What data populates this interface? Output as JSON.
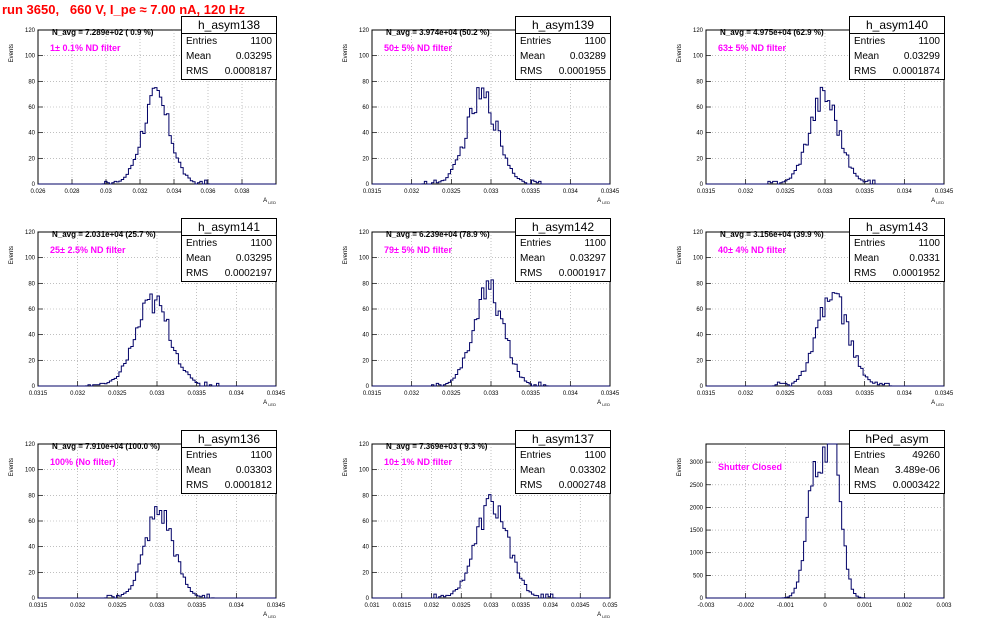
{
  "title": "run 3650,   660 V, I_pe ≈ 7.00 nA, 120 Hz",
  "chart_data": [
    {
      "type": "histogram",
      "name": "h_asym138",
      "ylabel": "Events",
      "xlabel": "A_{LED}",
      "ylim": [
        0,
        120
      ],
      "yticks": [
        0,
        20,
        40,
        60,
        80,
        100,
        120
      ],
      "xlim": [
        0.026,
        0.04
      ],
      "xticks": [
        0.026,
        0.028,
        0.03,
        0.032,
        0.034,
        0.036,
        0.038,
        0.04
      ],
      "xticklabels": [
        "0.026",
        "0.028",
        "0.03",
        "0.032",
        "0.034",
        "0.036",
        "0.038",
        ""
      ],
      "stats": {
        "entries": "1100",
        "mean": "0.03295",
        "rms": "0.0008187"
      },
      "n_avg": "N_avg = 7.289e+02 ( 0.9 %)",
      "filter": "1± 0.1% ND filter",
      "mean": 0.03295,
      "sigma": 0.00082,
      "peak": 72
    },
    {
      "type": "histogram",
      "name": "h_asym139",
      "ylabel": "Events",
      "xlabel": "A_{LED}",
      "ylim": [
        0,
        120
      ],
      "yticks": [
        0,
        20,
        40,
        60,
        80,
        100,
        120
      ],
      "xlim": [
        0.0315,
        0.0345
      ],
      "xticks": [
        0.0315,
        0.032,
        0.0325,
        0.033,
        0.0335,
        0.034,
        0.0345
      ],
      "xticklabels": [
        "0.0315",
        "0.032",
        "0.0325",
        "0.033",
        "0.0335",
        "0.034",
        "0.0345"
      ],
      "stats": {
        "entries": "1100",
        "mean": "0.03289",
        "rms": "0.0001955"
      },
      "n_avg": "N_avg = 3.974e+04 (50.2 %)",
      "filter": "50± 5% ND filter",
      "mean": 0.03289,
      "sigma": 0.000196,
      "peak": 73
    },
    {
      "type": "histogram",
      "name": "h_asym140",
      "ylabel": "Events",
      "xlabel": "A_{LED}",
      "ylim": [
        0,
        120
      ],
      "yticks": [
        0,
        20,
        40,
        60,
        80,
        100,
        120
      ],
      "xlim": [
        0.0315,
        0.0345
      ],
      "xticks": [
        0.0315,
        0.032,
        0.0325,
        0.033,
        0.0335,
        0.034,
        0.0345
      ],
      "xticklabels": [
        "0.0315",
        "0.032",
        "0.0325",
        "0.033",
        "0.0335",
        "0.034",
        "0.0345"
      ],
      "stats": {
        "entries": "1100",
        "mean": "0.03299",
        "rms": "0.0001874"
      },
      "n_avg": "N_avg = 4.975e+04 (62.9 %)",
      "filter": "63± 5% ND filter",
      "mean": 0.03299,
      "sigma": 0.000187,
      "peak": 74
    },
    {
      "type": "histogram",
      "name": "h_asym141",
      "ylabel": "Events",
      "xlabel": "A_{LED}",
      "ylim": [
        0,
        120
      ],
      "yticks": [
        0,
        20,
        40,
        60,
        80,
        100,
        120
      ],
      "xlim": [
        0.0315,
        0.0345
      ],
      "xticks": [
        0.0315,
        0.032,
        0.0325,
        0.033,
        0.0335,
        0.034,
        0.0345
      ],
      "xticklabels": [
        "0.0315",
        "0.032",
        "0.0325",
        "0.033",
        "0.0335",
        "0.034",
        "0.0345"
      ],
      "stats": {
        "entries": "1100",
        "mean": "0.03295",
        "rms": "0.0002197"
      },
      "n_avg": "N_avg = 2.031e+04 (25.7 %)",
      "filter": "25± 2.5% ND filter",
      "mean": 0.03295,
      "sigma": 0.00022,
      "peak": 70
    },
    {
      "type": "histogram",
      "name": "h_asym142",
      "ylabel": "Events",
      "xlabel": "A_{LED}",
      "ylim": [
        0,
        120
      ],
      "yticks": [
        0,
        20,
        40,
        60,
        80,
        100,
        120
      ],
      "xlim": [
        0.0315,
        0.0345
      ],
      "xticks": [
        0.0315,
        0.032,
        0.0325,
        0.033,
        0.0335,
        0.034,
        0.0345
      ],
      "xticklabels": [
        "0.0315",
        "0.032",
        "0.0325",
        "0.033",
        "0.0335",
        "0.034",
        "0.0345"
      ],
      "stats": {
        "entries": "1100",
        "mean": "0.03297",
        "rms": "0.0001917"
      },
      "n_avg": "N_avg = 6.239e+04 (78.9 %)",
      "filter": "79± 5% ND filter",
      "mean": 0.03297,
      "sigma": 0.000192,
      "peak": 80
    },
    {
      "type": "histogram",
      "name": "h_asym143",
      "ylabel": "Events",
      "xlabel": "A_{LED}",
      "ylim": [
        0,
        120
      ],
      "yticks": [
        0,
        20,
        40,
        60,
        80,
        100,
        120
      ],
      "xlim": [
        0.0315,
        0.0345
      ],
      "xticks": [
        0.0315,
        0.032,
        0.0325,
        0.033,
        0.0335,
        0.034,
        0.0345
      ],
      "xticklabels": [
        "0.0315",
        "0.032",
        "0.0325",
        "0.033",
        "0.0335",
        "0.034",
        "0.0345"
      ],
      "stats": {
        "entries": "1100",
        "mean": "0.0331",
        "rms": "0.0001952"
      },
      "n_avg": "N_avg = 3.156e+04 (39.9 %)",
      "filter": "40± 4% ND filter",
      "mean": 0.0331,
      "sigma": 0.000195,
      "peak": 75
    },
    {
      "type": "histogram",
      "name": "h_asym136",
      "ylabel": "Events",
      "xlabel": "A_{LED}",
      "ylim": [
        0,
        120
      ],
      "yticks": [
        0,
        20,
        40,
        60,
        80,
        100,
        120
      ],
      "xlim": [
        0.0315,
        0.0345
      ],
      "xticks": [
        0.0315,
        0.032,
        0.0325,
        0.033,
        0.0335,
        0.034,
        0.0345
      ],
      "xticklabels": [
        "0.0315",
        "0.032",
        "0.0325",
        "0.033",
        "0.0335",
        "0.034",
        "0.0345"
      ],
      "stats": {
        "entries": "1100",
        "mean": "0.03303",
        "rms": "0.0001812"
      },
      "n_avg": "N_avg = 7.910e+04 (100.0 %)",
      "filter": "100% (No filter)",
      "mean": 0.03303,
      "sigma": 0.000181,
      "peak": 72
    },
    {
      "type": "histogram",
      "name": "h_asym137",
      "ylabel": "Events",
      "xlabel": "A_{LED}",
      "ylim": [
        0,
        120
      ],
      "yticks": [
        0,
        20,
        40,
        60,
        80,
        100,
        120
      ],
      "xlim": [
        0.031,
        0.035
      ],
      "xticks": [
        0.031,
        0.0315,
        0.032,
        0.0325,
        0.033,
        0.0335,
        0.034,
        0.0345,
        0.035
      ],
      "xticklabels": [
        "0.031",
        "0.0315",
        "0.032",
        "0.0325",
        "0.033",
        "0.0335",
        "0.034",
        "0.0345",
        "0.035"
      ],
      "stats": {
        "entries": "1100",
        "mean": "0.03302",
        "rms": "0.0002748"
      },
      "n_avg": "N_avg = 7.369e+03 ( 9.3 %)",
      "filter": "10± 1% ND filter",
      "mean": 0.03302,
      "sigma": 0.000275,
      "peak": 78
    },
    {
      "type": "histogram",
      "name": "hPed_asym",
      "ylabel": "Events",
      "xlabel": "",
      "ylim": [
        0,
        3400
      ],
      "yticks": [
        0,
        500,
        1000,
        1500,
        2000,
        2500,
        3000
      ],
      "xlim": [
        -0.003,
        0.003
      ],
      "xticks": [
        -0.003,
        -0.002,
        -0.001,
        0,
        0.001,
        0.002,
        0.003
      ],
      "xticklabels": [
        "-0.003",
        "-0.002",
        "-0.001",
        "0",
        "0.001",
        "0.002",
        "0.003"
      ],
      "stats": {
        "entries": "49260",
        "mean": "3.489e-06",
        "rms": "0.0003422"
      },
      "n_avg": "",
      "filter": "Shutter Closed",
      "mean": 3.5e-06,
      "sigma": 0.00034,
      "peak": 3200,
      "bimodal": true
    }
  ]
}
